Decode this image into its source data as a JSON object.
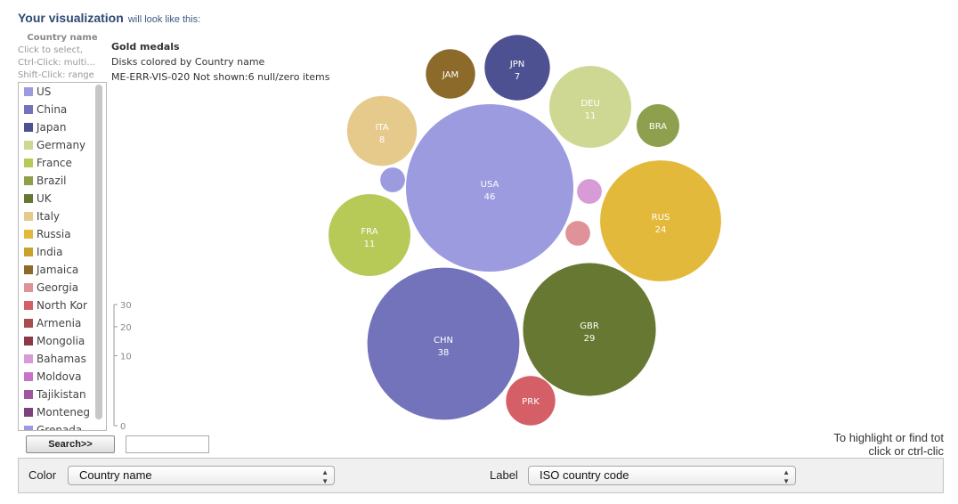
{
  "header": {
    "title": "Your visualization",
    "subtitle": "will look like this:"
  },
  "legend": {
    "title": "Country name",
    "hint_lines": [
      "Click to select,",
      "Ctrl-Click: multi...",
      "Shift-Click: range"
    ],
    "items": [
      {
        "label": "US",
        "color": "#9d9be0"
      },
      {
        "label": "China",
        "color": "#7373bb"
      },
      {
        "label": "Japan",
        "color": "#4d5192"
      },
      {
        "label": "Germany",
        "color": "#ced892"
      },
      {
        "label": "France",
        "color": "#b7ca58"
      },
      {
        "label": "Brazil",
        "color": "#8ea04d"
      },
      {
        "label": "UK",
        "color": "#667832"
      },
      {
        "label": "Italy",
        "color": "#e6ca8c"
      },
      {
        "label": "Russia",
        "color": "#e3b93b"
      },
      {
        "label": "India",
        "color": "#c8a22f"
      },
      {
        "label": "Jamaica",
        "color": "#8c6b2a"
      },
      {
        "label": "Georgia",
        "color": "#df9297"
      },
      {
        "label": "North Kor",
        "color": "#d45f67"
      },
      {
        "label": "Armenia",
        "color": "#aa4d4f"
      },
      {
        "label": "Mongolia",
        "color": "#8b3a44"
      },
      {
        "label": "Bahamas",
        "color": "#d79bd8"
      },
      {
        "label": "Moldova",
        "color": "#c873c8"
      },
      {
        "label": "Tajikistan",
        "color": "#a0559f"
      },
      {
        "label": "Monteneg",
        "color": "#7b4280"
      },
      {
        "label": "Grenada",
        "color": "#9d9be0"
      }
    ]
  },
  "size_axis": {
    "ticks": [
      {
        "value": 30,
        "label": "30"
      },
      {
        "value": 20,
        "label": "20"
      },
      {
        "value": 10,
        "label": "10"
      },
      {
        "value": 0,
        "label": "0"
      }
    ],
    "max": 30
  },
  "search": {
    "button_label": "Search>>",
    "value": ""
  },
  "chart_data": {
    "type": "bubble",
    "title": "Gold medals",
    "subtitle": "Disks colored by Country name",
    "note": "ME-ERR-VIS-020 Not shown:6 null/zero items",
    "size_measure": "Gold medals",
    "color_by": "Country name",
    "label_by": "ISO country code",
    "points": [
      {
        "code": "USA",
        "label": "USA",
        "value": 46,
        "value_label": "46",
        "country": "US",
        "color": "#9d9be0"
      },
      {
        "code": "CHN",
        "label": "CHN",
        "value": 38,
        "value_label": "38",
        "country": "China",
        "color": "#7373bb"
      },
      {
        "code": "GBR",
        "label": "GBR",
        "value": 29,
        "value_label": "29",
        "country": "UK",
        "color": "#667832"
      },
      {
        "code": "RUS",
        "label": "RUS",
        "value": 24,
        "value_label": "24",
        "country": "Russia",
        "color": "#e3b93b"
      },
      {
        "code": "FRA",
        "label": "FRA",
        "value": 11,
        "value_label": "11",
        "country": "France",
        "color": "#b7ca58"
      },
      {
        "code": "DEU",
        "label": "DEU",
        "value": 11,
        "value_label": "11",
        "country": "Germany",
        "color": "#ced892"
      },
      {
        "code": "ITA",
        "label": "ITA",
        "value": 8,
        "value_label": "8",
        "country": "Italy",
        "color": "#e6ca8c"
      },
      {
        "code": "JPN",
        "label": "JPN",
        "value": 7,
        "value_label": "7",
        "country": "Japan",
        "color": "#4d5192"
      },
      {
        "code": "JAM",
        "label": "JAM",
        "value": 4,
        "value_label": "",
        "country": "Jamaica",
        "color": "#8c6b2a"
      },
      {
        "code": "PRK",
        "label": "PRK",
        "value": 4,
        "value_label": "",
        "country": "North Korea",
        "color": "#d45f67"
      },
      {
        "code": "BRA",
        "label": "BRA",
        "value": 3,
        "value_label": "",
        "country": "Brazil",
        "color": "#8ea04d"
      },
      {
        "code": "BHS",
        "label": "",
        "value": 1,
        "value_label": "",
        "country": "Bahamas",
        "color": "#d79bd8"
      },
      {
        "code": "GEO",
        "label": "",
        "value": 1,
        "value_label": "",
        "country": "Georgia",
        "color": "#df9297"
      },
      {
        "code": "GRD",
        "label": "",
        "value": 1,
        "value_label": "",
        "country": "Grenada",
        "color": "#9d9be0"
      }
    ]
  },
  "hint": {
    "lines": [
      "To highlight or find tot",
      "click or ctrl-clic"
    ]
  },
  "controls": {
    "color_label": "Color",
    "color_value": "Country name",
    "label_label": "Label",
    "label_value": "ISO country code"
  }
}
